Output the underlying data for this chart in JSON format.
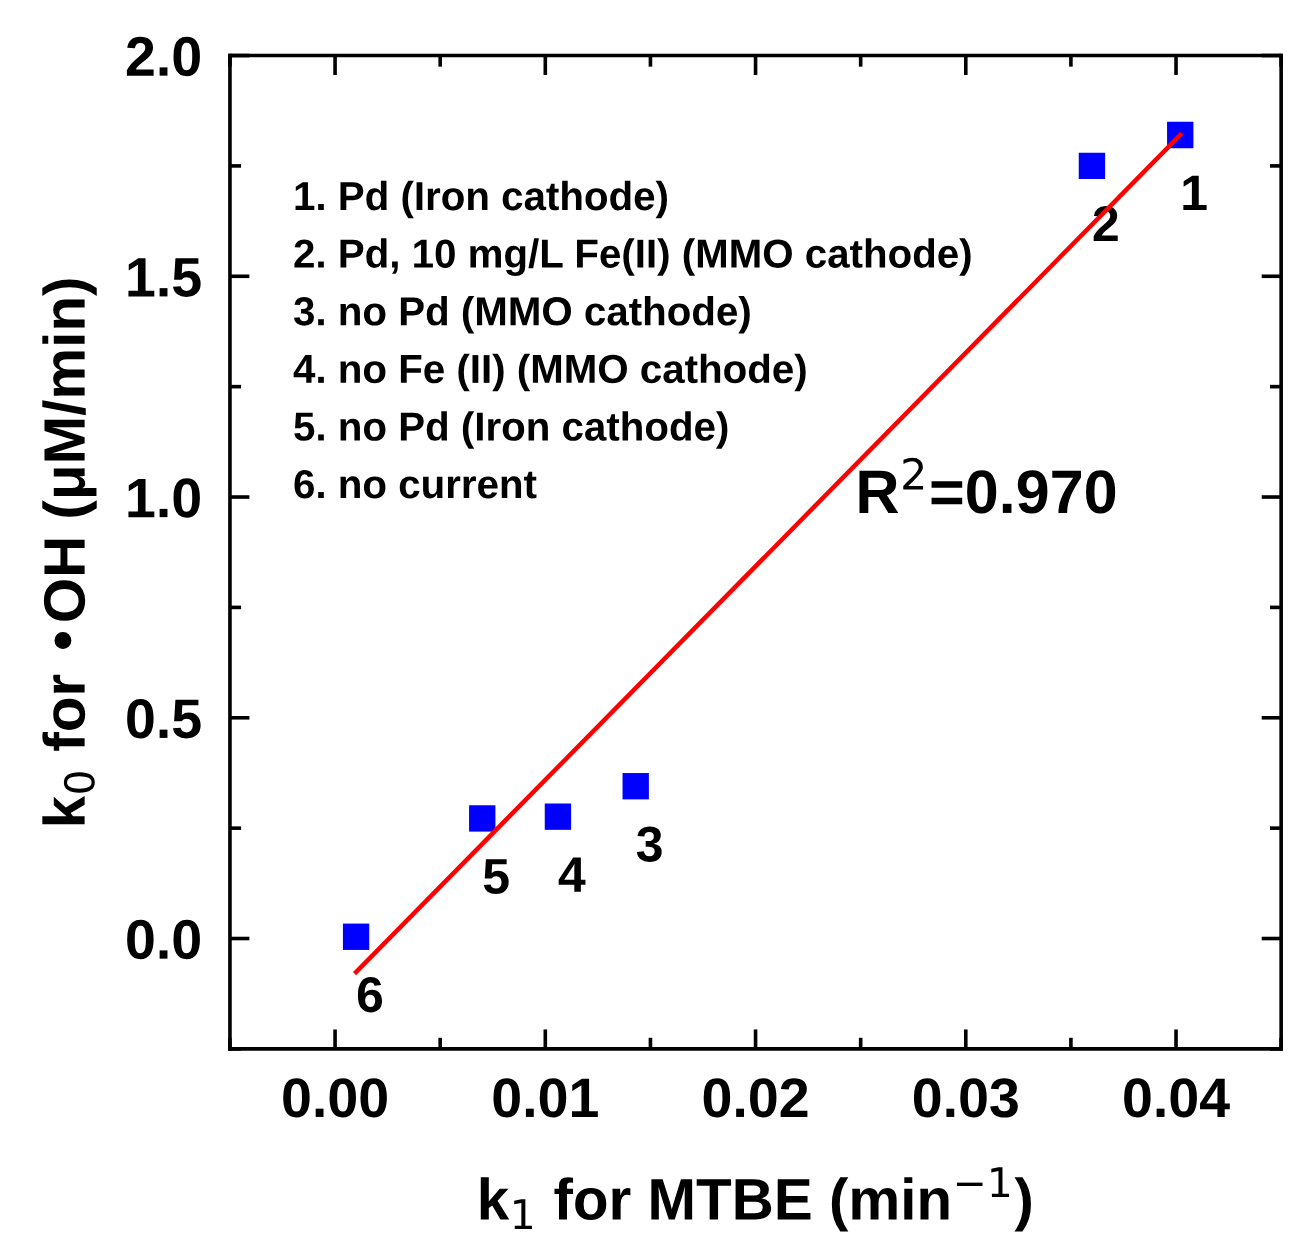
{
  "chart_data": {
    "type": "scatter",
    "xlabel": "k$_{1}$ for MTBE (min$^{−1}$)",
    "ylabel": "k$_{0}$ for •OH (μM/min)",
    "xlim": [
      -0.005,
      0.045
    ],
    "ylim": [
      -0.25,
      2.0
    ],
    "xticks": [
      {
        "value": 0.0,
        "label": "0.00"
      },
      0.01,
      0.02,
      0.03,
      0.04
    ],
    "yticks": [
      {
        "value": 0.0,
        "label": "0.0"
      },
      0.5,
      {
        "value": 1.0,
        "label": "1.0"
      },
      1.5,
      {
        "value": 2.0,
        "label": "2.0"
      }
    ],
    "grid": false,
    "legend": false,
    "series": [
      {
        "marker": "square",
        "color": "#0000ff",
        "x": [
          0.0402,
          0.036,
          0.0143,
          0.0106,
          0.007,
          0.001
        ],
        "values": [
          1.82,
          1.75,
          0.345,
          0.276,
          0.272,
          0.004
        ]
      },
      {
        "type": "line",
        "marker": "none",
        "color": "#ff0000",
        "x": [
          0.001,
          0.0402
        ],
        "values": [
          -0.076,
          1.82
        ]
      }
    ],
    "annotations": [
      "1. Pd (Iron cathode)",
      "2. Pd, 10 mg/L Fe(II) (MMO cathode)",
      "3. no Pd (MMO cathode)",
      "4. no Fe (II) (MMO cathode)",
      "5. no Pd (Iron cathode)",
      "6. no current",
      {
        "text": "1",
        "x": 0.0402,
        "y": 1.82
      },
      {
        "text": "2",
        "x": 0.036,
        "y": 1.75
      },
      {
        "text": "3",
        "x": 0.0143,
        "y": 0.345
      },
      {
        "text": "4",
        "x": 0.0106,
        "y": 0.276
      },
      {
        "text": "5",
        "x": 0.007,
        "y": 0.272
      },
      {
        "text": "6",
        "x": 0.001,
        "y": 0.004
      },
      "R$^{2}$=0.970"
    ]
  }
}
